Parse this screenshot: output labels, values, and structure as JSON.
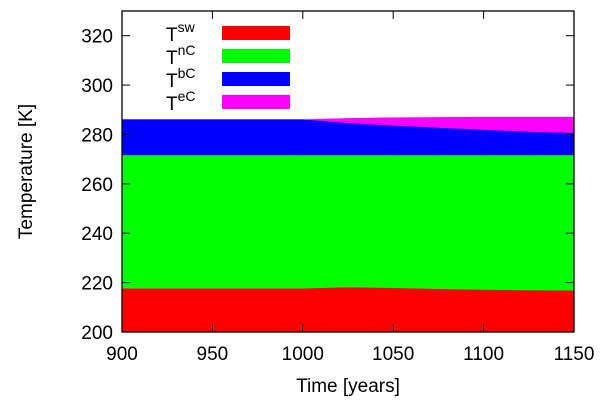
{
  "chart_data": {
    "type": "area",
    "stacked": true,
    "xlabel": "Time [years]",
    "ylabel": "Temperature [K]",
    "xlim": [
      900,
      1150
    ],
    "ylim": [
      200,
      330
    ],
    "x_ticks": [
      "900",
      "950",
      "1000",
      "1050",
      "1100",
      "1150"
    ],
    "y_ticks": [
      "200",
      "220",
      "240",
      "260",
      "280",
      "300",
      "320"
    ],
    "grid": false,
    "legend_position": "top-left",
    "x": [
      900,
      1000,
      1025,
      1050,
      1075,
      1100,
      1125,
      1150
    ],
    "series": [
      {
        "name_base": "T",
        "name_sup": "sw",
        "color": "#ff0000",
        "top": [
          217.5,
          217.5,
          218,
          217.7,
          217.3,
          217.0,
          216.8,
          216.7
        ]
      },
      {
        "name_base": "T",
        "name_sup": "nC",
        "color": "#00ff00",
        "top": [
          271.5,
          271.5,
          271.5,
          271.5,
          271.5,
          271.5,
          271.5,
          271.5
        ]
      },
      {
        "name_base": "T",
        "name_sup": "bC",
        "color": "#0000ff",
        "top": [
          286.0,
          286.0,
          284.5,
          283.5,
          282.6,
          281.8,
          281.0,
          280.5
        ]
      },
      {
        "name_base": "T",
        "name_sup": "eC",
        "color": "#ff00ff",
        "top": [
          286.0,
          286.0,
          286.5,
          286.8,
          286.9,
          287.0,
          287.0,
          287.0
        ]
      }
    ]
  }
}
